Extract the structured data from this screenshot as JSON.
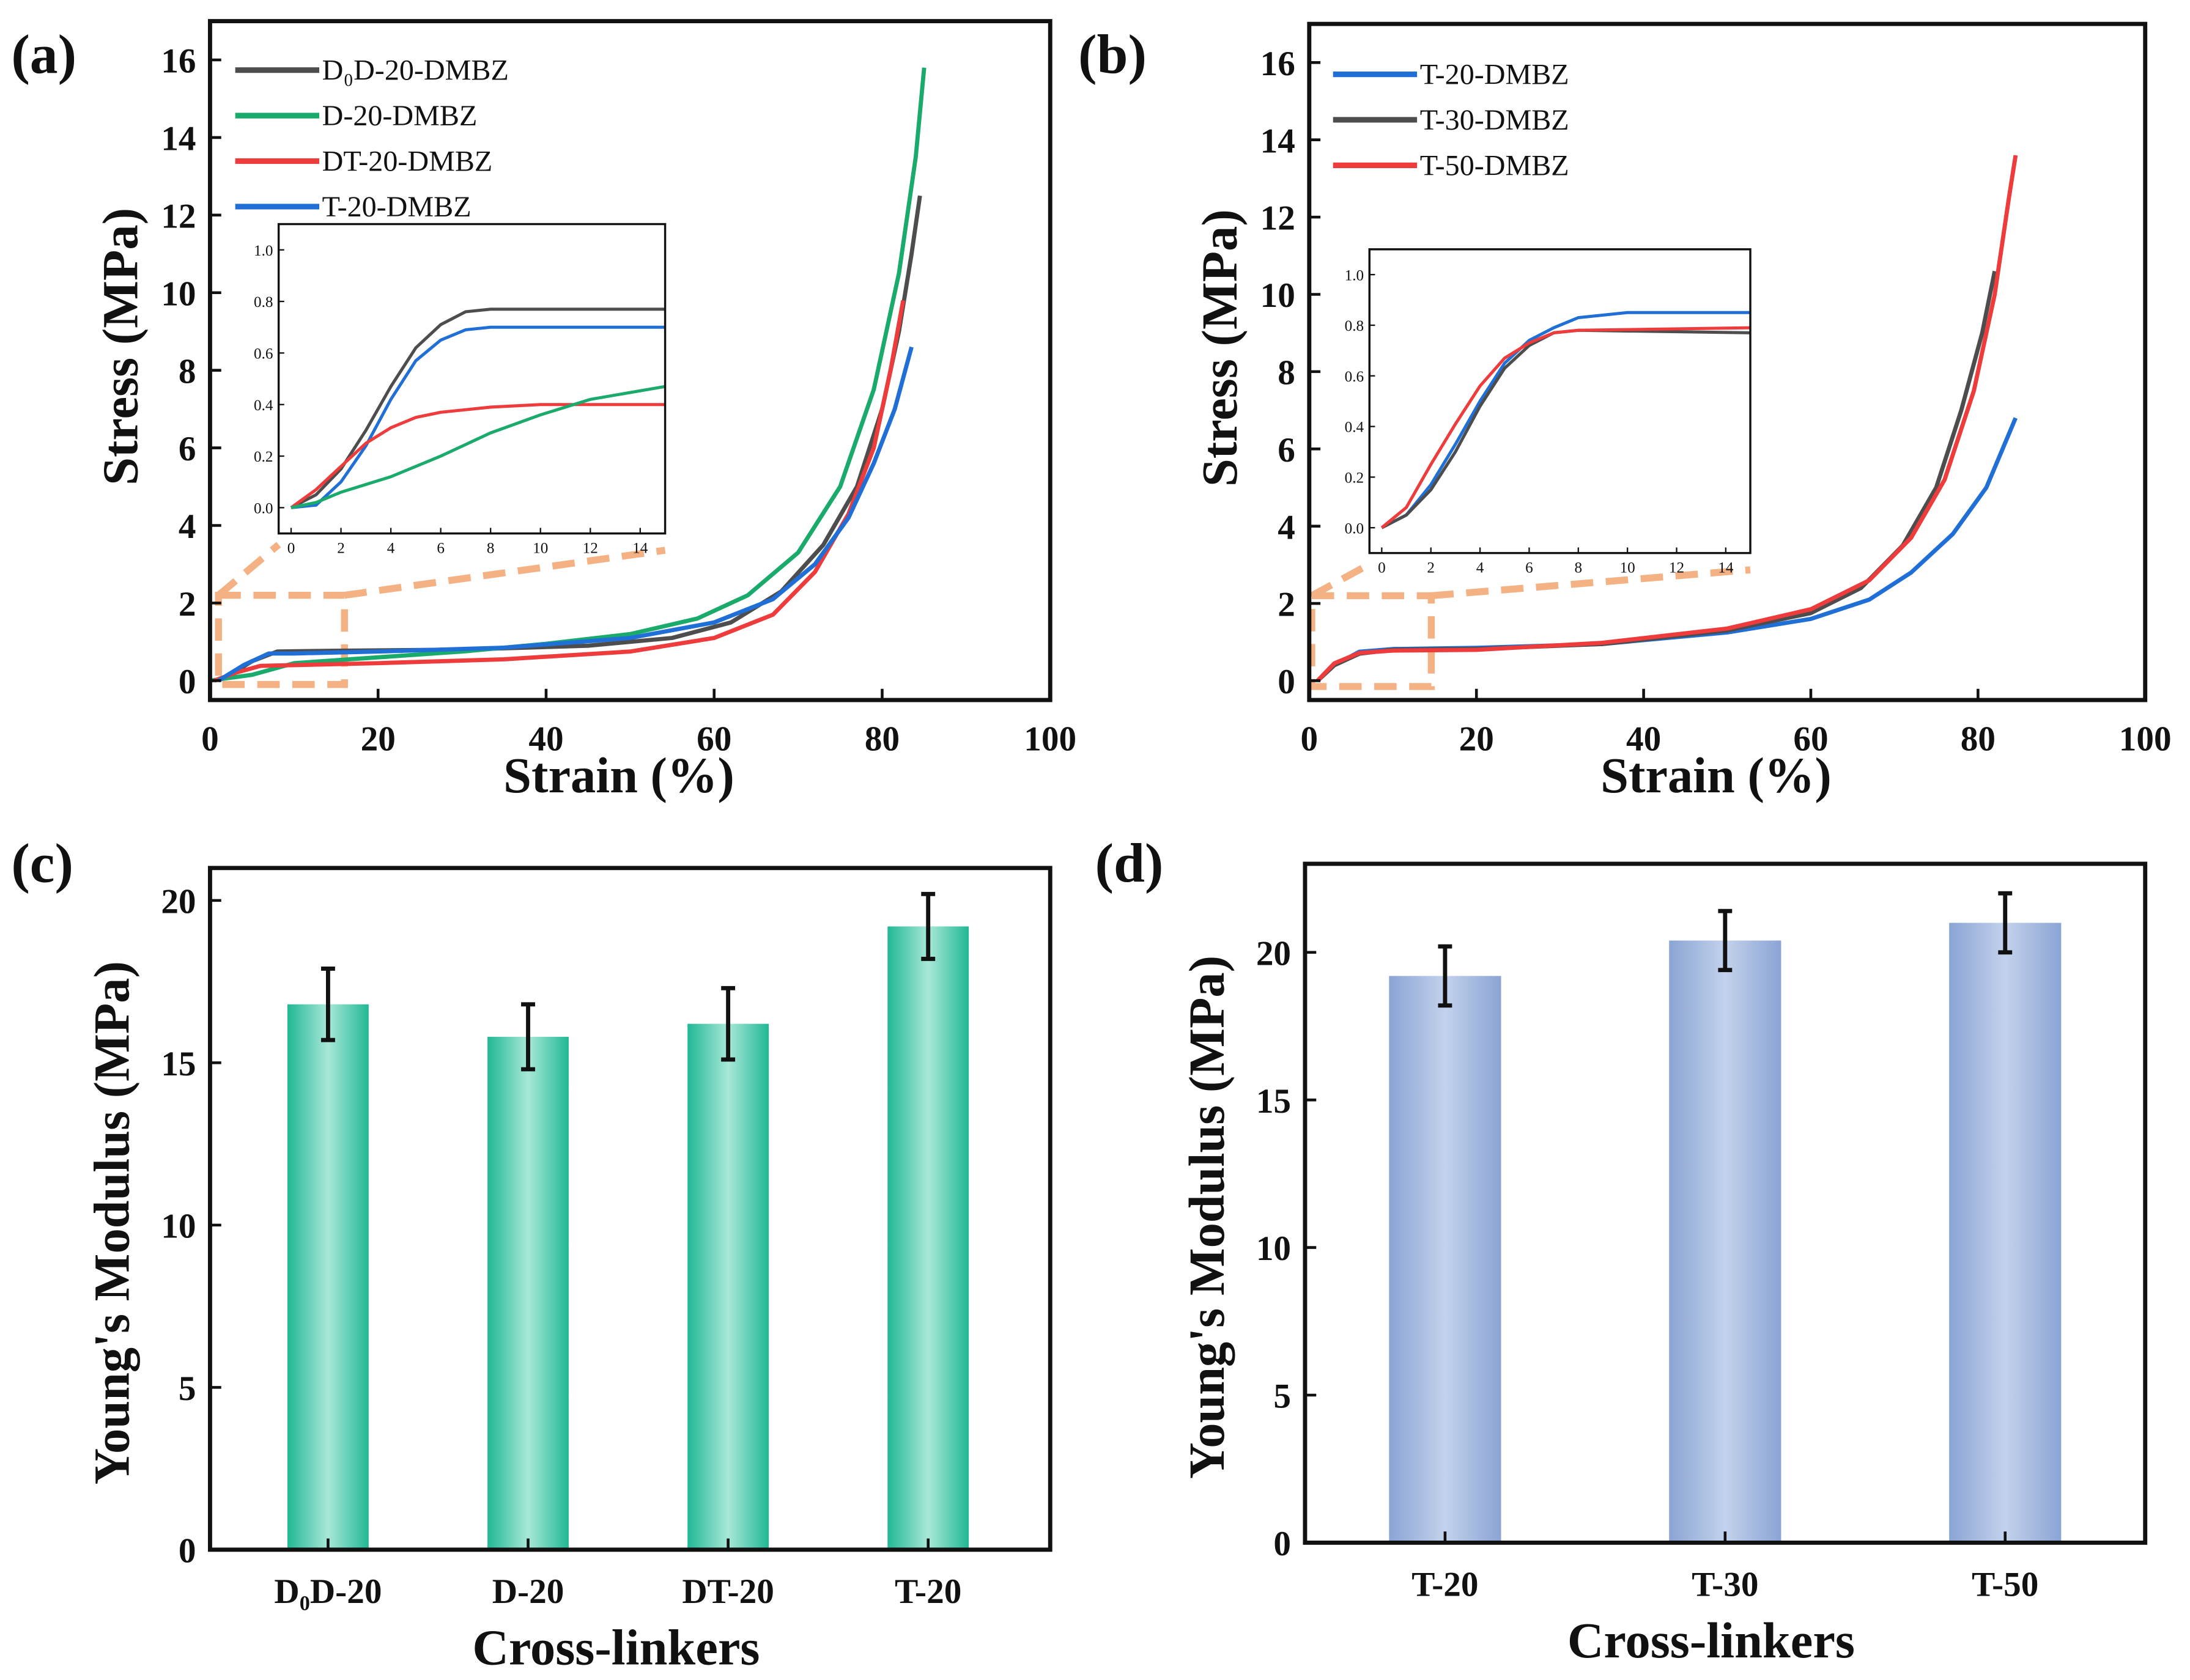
{
  "colors": {
    "gray": "#4d4d4d",
    "green": "#1aaa6c",
    "red": "#ee3b3b",
    "blue": "#1f6fd6",
    "zoom": "#f4b183",
    "teal_bar": "#3cc7a8",
    "blue_bar": "#9db3da"
  },
  "chart_data": [
    {
      "panel": "(a)",
      "type": "line",
      "xlabel": "Strain (%)",
      "ylabel": "Stress (MPa)",
      "xlim": [
        0,
        100
      ],
      "ylim": [
        -0.5,
        17
      ],
      "xticks": [
        0,
        20,
        40,
        60,
        80,
        100
      ],
      "yticks": [
        0,
        2,
        4,
        6,
        8,
        10,
        12,
        14,
        16
      ],
      "legend_position": "top-left",
      "series": [
        {
          "name": "D₀D-20-DMBZ",
          "color": "gray",
          "points": [
            [
              0.5,
              0
            ],
            [
              2,
              0.1
            ],
            [
              5,
              0.5
            ],
            [
              8,
              0.75
            ],
            [
              15,
              0.77
            ],
            [
              30,
              0.8
            ],
            [
              45,
              0.9
            ],
            [
              55,
              1.1
            ],
            [
              62,
              1.5
            ],
            [
              68,
              2.3
            ],
            [
              73,
              3.5
            ],
            [
              77,
              5
            ],
            [
              80,
              7
            ],
            [
              82,
              9
            ],
            [
              83.5,
              11
            ],
            [
              84.5,
              12.5
            ]
          ]
        },
        {
          "name": "D-20-DMBZ",
          "color": "green",
          "points": [
            [
              0,
              0
            ],
            [
              5,
              0.15
            ],
            [
              10,
              0.45
            ],
            [
              20,
              0.6
            ],
            [
              30,
              0.75
            ],
            [
              40,
              0.95
            ],
            [
              50,
              1.2
            ],
            [
              58,
              1.6
            ],
            [
              64,
              2.2
            ],
            [
              70,
              3.3
            ],
            [
              75,
              5
            ],
            [
              79,
              7.5
            ],
            [
              82,
              10.5
            ],
            [
              84,
              13.5
            ],
            [
              85,
              15.8
            ]
          ]
        },
        {
          "name": "DT-20-DMBZ",
          "color": "red",
          "points": [
            [
              0.5,
              0
            ],
            [
              3,
              0.2
            ],
            [
              6,
              0.38
            ],
            [
              10,
              0.4
            ],
            [
              20,
              0.45
            ],
            [
              35,
              0.55
            ],
            [
              50,
              0.75
            ],
            [
              60,
              1.1
            ],
            [
              67,
              1.7
            ],
            [
              72,
              2.8
            ],
            [
              76,
              4.3
            ],
            [
              79,
              6
            ],
            [
              81,
              8
            ],
            [
              82.5,
              9.8
            ]
          ]
        },
        {
          "name": "T-20-DMBZ",
          "color": "blue",
          "points": [
            [
              1,
              0
            ],
            [
              4,
              0.4
            ],
            [
              7,
              0.7
            ],
            [
              10,
              0.7
            ],
            [
              20,
              0.75
            ],
            [
              35,
              0.85
            ],
            [
              50,
              1.1
            ],
            [
              60,
              1.5
            ],
            [
              67,
              2.1
            ],
            [
              72,
              3
            ],
            [
              76,
              4.2
            ],
            [
              79,
              5.6
            ],
            [
              81.5,
              7
            ],
            [
              83.5,
              8.6
            ]
          ]
        }
      ],
      "inset": {
        "xlim": [
          -0.5,
          15
        ],
        "ylim": [
          -0.1,
          1.1
        ],
        "xticks": [
          0,
          2,
          4,
          6,
          8,
          10,
          12,
          14
        ],
        "yticks": [
          "0.0",
          "0.2",
          "0.4",
          "0.6",
          "0.8",
          "1.0"
        ],
        "series": [
          {
            "color": "gray",
            "points": [
              [
                0,
                0
              ],
              [
                1,
                0.05
              ],
              [
                2,
                0.15
              ],
              [
                3,
                0.3
              ],
              [
                4,
                0.47
              ],
              [
                5,
                0.62
              ],
              [
                6,
                0.71
              ],
              [
                7,
                0.76
              ],
              [
                8,
                0.77
              ],
              [
                15,
                0.77
              ]
            ]
          },
          {
            "color": "blue",
            "points": [
              [
                0,
                0
              ],
              [
                1,
                0.01
              ],
              [
                2,
                0.1
              ],
              [
                3,
                0.24
              ],
              [
                4,
                0.42
              ],
              [
                5,
                0.57
              ],
              [
                6,
                0.65
              ],
              [
                7,
                0.69
              ],
              [
                8,
                0.7
              ],
              [
                15,
                0.7
              ]
            ]
          },
          {
            "color": "red",
            "points": [
              [
                0,
                0
              ],
              [
                1,
                0.07
              ],
              [
                2,
                0.16
              ],
              [
                3,
                0.25
              ],
              [
                4,
                0.31
              ],
              [
                5,
                0.35
              ],
              [
                6,
                0.37
              ],
              [
                8,
                0.39
              ],
              [
                10,
                0.4
              ],
              [
                15,
                0.4
              ]
            ]
          },
          {
            "color": "green",
            "points": [
              [
                0,
                0
              ],
              [
                1,
                0.02
              ],
              [
                2,
                0.06
              ],
              [
                4,
                0.12
              ],
              [
                6,
                0.2
              ],
              [
                8,
                0.29
              ],
              [
                10,
                0.36
              ],
              [
                12,
                0.42
              ],
              [
                15,
                0.47
              ]
            ]
          }
        ]
      }
    },
    {
      "panel": "(b)",
      "type": "line",
      "xlabel": "Strain (%)",
      "ylabel": "Stress (MPa)",
      "xlim": [
        0,
        100
      ],
      "ylim": [
        -0.5,
        17
      ],
      "xticks": [
        0,
        20,
        40,
        60,
        80,
        100
      ],
      "yticks": [
        0,
        2,
        4,
        6,
        8,
        10,
        12,
        14,
        16
      ],
      "legend_position": "top-left",
      "series": [
        {
          "name": "T-20-DMBZ",
          "color": "blue",
          "points": [
            [
              1,
              0
            ],
            [
              3,
              0.4
            ],
            [
              6,
              0.75
            ],
            [
              10,
              0.82
            ],
            [
              20,
              0.85
            ],
            [
              35,
              0.95
            ],
            [
              50,
              1.25
            ],
            [
              60,
              1.6
            ],
            [
              67,
              2.1
            ],
            [
              72,
              2.8
            ],
            [
              77,
              3.8
            ],
            [
              81,
              5
            ],
            [
              84.5,
              6.8
            ]
          ]
        },
        {
          "name": "T-30-DMBZ",
          "color": "gray",
          "points": [
            [
              1,
              0
            ],
            [
              3,
              0.4
            ],
            [
              6,
              0.7
            ],
            [
              10,
              0.8
            ],
            [
              20,
              0.82
            ],
            [
              35,
              0.95
            ],
            [
              50,
              1.3
            ],
            [
              60,
              1.75
            ],
            [
              66,
              2.4
            ],
            [
              71,
              3.5
            ],
            [
              75,
              5
            ],
            [
              78,
              7
            ],
            [
              80.5,
              9
            ],
            [
              82,
              10.6
            ]
          ]
        },
        {
          "name": "T-50-DMBZ",
          "color": "red",
          "points": [
            [
              1,
              0
            ],
            [
              3,
              0.45
            ],
            [
              6,
              0.72
            ],
            [
              10,
              0.78
            ],
            [
              20,
              0.8
            ],
            [
              35,
              0.98
            ],
            [
              50,
              1.35
            ],
            [
              60,
              1.85
            ],
            [
              67,
              2.6
            ],
            [
              72,
              3.7
            ],
            [
              76,
              5.2
            ],
            [
              79.5,
              7.5
            ],
            [
              82,
              10
            ],
            [
              83.7,
              12.5
            ],
            [
              84.5,
              13.6
            ]
          ]
        }
      ],
      "inset": {
        "xlim": [
          -0.5,
          15
        ],
        "ylim": [
          -0.1,
          1.1
        ],
        "xticks": [
          0,
          2,
          4,
          6,
          8,
          10,
          12,
          14
        ],
        "yticks": [
          "0.0",
          "0.2",
          "0.4",
          "0.6",
          "0.8",
          "1.0"
        ],
        "series": [
          {
            "color": "blue",
            "points": [
              [
                0,
                0
              ],
              [
                1,
                0.05
              ],
              [
                2,
                0.17
              ],
              [
                3,
                0.33
              ],
              [
                4,
                0.5
              ],
              [
                5,
                0.65
              ],
              [
                6,
                0.74
              ],
              [
                7,
                0.79
              ],
              [
                8,
                0.83
              ],
              [
                10,
                0.85
              ],
              [
                15,
                0.85
              ]
            ]
          },
          {
            "color": "gray",
            "points": [
              [
                0,
                0
              ],
              [
                1,
                0.05
              ],
              [
                2,
                0.15
              ],
              [
                3,
                0.3
              ],
              [
                4,
                0.48
              ],
              [
                5,
                0.63
              ],
              [
                6,
                0.72
              ],
              [
                7,
                0.77
              ],
              [
                8,
                0.78
              ],
              [
                15,
                0.77
              ]
            ]
          },
          {
            "color": "red",
            "points": [
              [
                0,
                0
              ],
              [
                1,
                0.08
              ],
              [
                2,
                0.25
              ],
              [
                3,
                0.41
              ],
              [
                4,
                0.56
              ],
              [
                5,
                0.67
              ],
              [
                6,
                0.73
              ],
              [
                7,
                0.77
              ],
              [
                8,
                0.78
              ],
              [
                15,
                0.79
              ]
            ]
          }
        ]
      }
    },
    {
      "panel": "(c)",
      "type": "bar",
      "xlabel": "Cross-linkers",
      "ylabel": "Young's Modulus (MPa)",
      "ylim": [
        0,
        21
      ],
      "yticks": [
        0,
        5,
        10,
        15,
        20
      ],
      "categories": [
        "D₀D-20",
        "D-20",
        "DT-20",
        "T-20"
      ],
      "values": [
        16.8,
        15.8,
        16.2,
        19.2
      ],
      "errors": [
        1.1,
        1.0,
        1.1,
        1.0
      ],
      "bar_color": "teal_bar"
    },
    {
      "panel": "(d)",
      "type": "bar",
      "xlabel": "Cross-linkers",
      "ylabel": "Young's Modulus (MPa)",
      "ylim": [
        0,
        23
      ],
      "yticks": [
        0,
        5,
        10,
        15,
        20
      ],
      "categories": [
        "T-20",
        "T-30",
        "T-50"
      ],
      "values": [
        19.2,
        20.4,
        21.0
      ],
      "errors": [
        1.0,
        1.0,
        1.0
      ],
      "bar_color": "blue_bar"
    }
  ]
}
